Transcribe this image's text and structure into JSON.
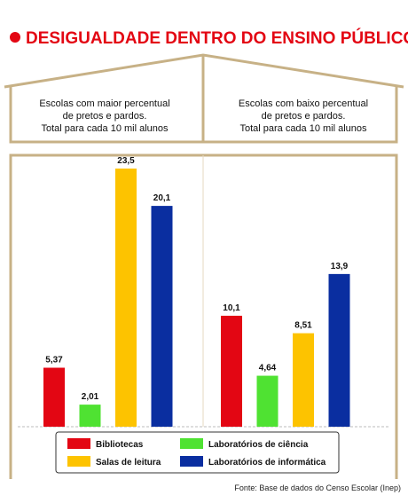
{
  "chart_data": {
    "type": "bar",
    "title": "DESIGUALDADE DENTRO DO ENSINO PÚBLICO",
    "categories": [
      "Escolas com maior percentual\nde pretos e pardos.\nTotal para cada 10 mil alunos",
      "Escolas com baixo percentual\nde pretos e pardos.\nTotal para cada 10 mil alunos"
    ],
    "series": [
      {
        "name": "Bibliotecas",
        "color": "#e30613",
        "values": [
          5.37,
          10.1
        ],
        "value_labels": [
          "5,37",
          "10,1"
        ]
      },
      {
        "name": "Laboratórios de ciência",
        "color": "#4fe232",
        "values": [
          2.01,
          4.64
        ],
        "value_labels": [
          "2,01",
          "4,64"
        ]
      },
      {
        "name": "Salas de leitura",
        "color": "#fdc300",
        "values": [
          23.5,
          8.51
        ],
        "value_labels": [
          "23,5",
          "8,51"
        ]
      },
      {
        "name": "Laboratórios de informática",
        "color": "#0a2ea0",
        "values": [
          20.1,
          13.9
        ],
        "value_labels": [
          "20,1",
          "13,9"
        ]
      }
    ],
    "source": "Fonte: Base de dados do Censo Escolar (Inep)"
  }
}
